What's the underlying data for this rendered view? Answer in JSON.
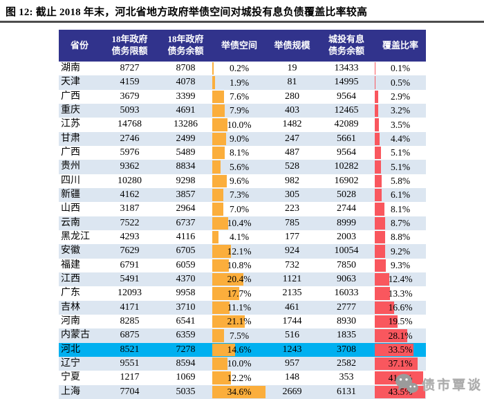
{
  "title": "图 12:  截止 2018 年末，河北省地方政府举债空间对城投有息负债覆盖比率较高",
  "watermark": {
    "text": "债市覃谈",
    "icon": "wechat-icon"
  },
  "colors": {
    "header_bg": "#31338c",
    "header_text": "#ffffff",
    "alt_row_bg": "#dce6f1",
    "highlight_row_bg": "#00b0f0",
    "space_bar": "#fbae3c",
    "coverage_bar": "#f9575e",
    "divider": "#4d4d4d",
    "watermark_gray": "#ababab"
  },
  "chart_data": {
    "type": "table",
    "title": "截止2018年末，河北省地方政府举债空间对城投有息负债覆盖比率较高",
    "columns": [
      "省份",
      "18年政府\n债务限额",
      "18年政府\n债务余额",
      "举债空间",
      "举债规模",
      "城投有息\n债务余额",
      "覆盖比率"
    ],
    "embedded_bars": {
      "leverage_space_pct": {
        "color": "#fbae3c",
        "axis_max_pct": 35
      },
      "coverage_ratio_pct": {
        "color": "#f9575e",
        "axis_max_pct": 44
      }
    },
    "highlighted_row": "河北",
    "rows": [
      {
        "province": "湖南",
        "debt_limit_18": 8727,
        "debt_balance_18": 8708,
        "leverage_space_pct": 0.2,
        "leverage_scale": 19,
        "urban_inv_debt": 13433,
        "coverage_ratio_pct": 0.1,
        "highlight": false
      },
      {
        "province": "天津",
        "debt_limit_18": 4159,
        "debt_balance_18": 4078,
        "leverage_space_pct": 1.9,
        "leverage_scale": 81,
        "urban_inv_debt": 14995,
        "coverage_ratio_pct": 0.5,
        "highlight": false
      },
      {
        "province": "广西",
        "debt_limit_18": 3679,
        "debt_balance_18": 3399,
        "leverage_space_pct": 7.6,
        "leverage_scale": 280,
        "urban_inv_debt": 9564,
        "coverage_ratio_pct": 2.9,
        "highlight": false
      },
      {
        "province": "重庆",
        "debt_limit_18": 5093,
        "debt_balance_18": 4691,
        "leverage_space_pct": 7.9,
        "leverage_scale": 403,
        "urban_inv_debt": 12465,
        "coverage_ratio_pct": 3.2,
        "highlight": false
      },
      {
        "province": "江苏",
        "debt_limit_18": 14768,
        "debt_balance_18": 13286,
        "leverage_space_pct": 10.0,
        "leverage_scale": 1482,
        "urban_inv_debt": 42089,
        "coverage_ratio_pct": 3.5,
        "highlight": false
      },
      {
        "province": "甘肃",
        "debt_limit_18": 2746,
        "debt_balance_18": 2499,
        "leverage_space_pct": 9.0,
        "leverage_scale": 247,
        "urban_inv_debt": 5661,
        "coverage_ratio_pct": 4.4,
        "highlight": false
      },
      {
        "province": "广西",
        "debt_limit_18": 5976,
        "debt_balance_18": 5489,
        "leverage_space_pct": 8.1,
        "leverage_scale": 487,
        "urban_inv_debt": 9564,
        "coverage_ratio_pct": 5.1,
        "highlight": false
      },
      {
        "province": "贵州",
        "debt_limit_18": 9362,
        "debt_balance_18": 8834,
        "leverage_space_pct": 5.6,
        "leverage_scale": 528,
        "urban_inv_debt": 10282,
        "coverage_ratio_pct": 5.1,
        "highlight": false
      },
      {
        "province": "四川",
        "debt_limit_18": 10280,
        "debt_balance_18": 9298,
        "leverage_space_pct": 9.6,
        "leverage_scale": 982,
        "urban_inv_debt": 16902,
        "coverage_ratio_pct": 5.8,
        "highlight": false
      },
      {
        "province": "新疆",
        "debt_limit_18": 4162,
        "debt_balance_18": 3857,
        "leverage_space_pct": 7.3,
        "leverage_scale": 305,
        "urban_inv_debt": 5028,
        "coverage_ratio_pct": 6.1,
        "highlight": false
      },
      {
        "province": "山西",
        "debt_limit_18": 3187,
        "debt_balance_18": 2964,
        "leverage_space_pct": 7.0,
        "leverage_scale": 223,
        "urban_inv_debt": 2744,
        "coverage_ratio_pct": 8.1,
        "highlight": false
      },
      {
        "province": "云南",
        "debt_limit_18": 7522,
        "debt_balance_18": 6737,
        "leverage_space_pct": 10.4,
        "leverage_scale": 785,
        "urban_inv_debt": 8999,
        "coverage_ratio_pct": 8.7,
        "highlight": false
      },
      {
        "province": "黑龙江",
        "debt_limit_18": 4293,
        "debt_balance_18": 4116,
        "leverage_space_pct": 4.1,
        "leverage_scale": 177,
        "urban_inv_debt": 2003,
        "coverage_ratio_pct": 8.8,
        "highlight": false
      },
      {
        "province": "安徽",
        "debt_limit_18": 7629,
        "debt_balance_18": 6705,
        "leverage_space_pct": 12.1,
        "leverage_scale": 924,
        "urban_inv_debt": 10054,
        "coverage_ratio_pct": 9.2,
        "highlight": false
      },
      {
        "province": "福建",
        "debt_limit_18": 6791,
        "debt_balance_18": 6059,
        "leverage_space_pct": 10.8,
        "leverage_scale": 732,
        "urban_inv_debt": 7850,
        "coverage_ratio_pct": 9.3,
        "highlight": false
      },
      {
        "province": "江西",
        "debt_limit_18": 5491,
        "debt_balance_18": 4370,
        "leverage_space_pct": 20.4,
        "leverage_scale": 1121,
        "urban_inv_debt": 9063,
        "coverage_ratio_pct": 12.4,
        "highlight": false
      },
      {
        "province": "广东",
        "debt_limit_18": 12093,
        "debt_balance_18": 9958,
        "leverage_space_pct": 17.7,
        "leverage_scale": 2135,
        "urban_inv_debt": 16033,
        "coverage_ratio_pct": 13.3,
        "highlight": false
      },
      {
        "province": "吉林",
        "debt_limit_18": 4171,
        "debt_balance_18": 3710,
        "leverage_space_pct": 11.1,
        "leverage_scale": 461,
        "urban_inv_debt": 2777,
        "coverage_ratio_pct": 16.6,
        "highlight": false
      },
      {
        "province": "河南",
        "debt_limit_18": 8285,
        "debt_balance_18": 6541,
        "leverage_space_pct": 21.1,
        "leverage_scale": 1744,
        "urban_inv_debt": 8930,
        "coverage_ratio_pct": 19.5,
        "highlight": false
      },
      {
        "province": "内蒙古",
        "debt_limit_18": 6875,
        "debt_balance_18": 6359,
        "leverage_space_pct": 7.5,
        "leverage_scale": 516,
        "urban_inv_debt": 1835,
        "coverage_ratio_pct": 28.1,
        "highlight": false
      },
      {
        "province": "河北",
        "debt_limit_18": 8521,
        "debt_balance_18": 7278,
        "leverage_space_pct": 14.6,
        "leverage_scale": 1243,
        "urban_inv_debt": 3708,
        "coverage_ratio_pct": 33.5,
        "highlight": true
      },
      {
        "province": "辽宁",
        "debt_limit_18": 9551,
        "debt_balance_18": 8594,
        "leverage_space_pct": 10.0,
        "leverage_scale": 957,
        "urban_inv_debt": 2582,
        "coverage_ratio_pct": 37.1,
        "highlight": false
      },
      {
        "province": "宁夏",
        "debt_limit_18": 1217,
        "debt_balance_18": 1069,
        "leverage_space_pct": 12.2,
        "leverage_scale": 148,
        "urban_inv_debt": 353,
        "coverage_ratio_pct": 41.9,
        "highlight": false
      },
      {
        "province": "上海",
        "debt_limit_18": 7704,
        "debt_balance_18": 5035,
        "leverage_space_pct": 34.6,
        "leverage_scale": 2669,
        "urban_inv_debt": 6131,
        "coverage_ratio_pct": 43.5,
        "highlight": false
      }
    ]
  }
}
